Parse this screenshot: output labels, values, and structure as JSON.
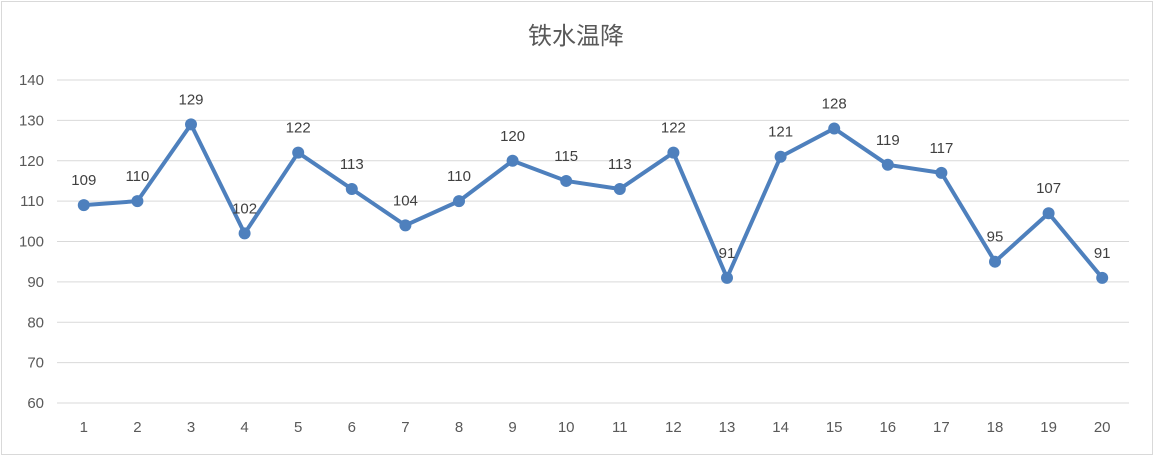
{
  "chart_data": {
    "type": "line",
    "title": "铁水温降",
    "xlabel": "",
    "ylabel": "",
    "categories": [
      "1",
      "2",
      "3",
      "4",
      "5",
      "6",
      "7",
      "8",
      "9",
      "10",
      "11",
      "12",
      "13",
      "14",
      "15",
      "16",
      "17",
      "18",
      "19",
      "20"
    ],
    "series": [
      {
        "values": [
          109,
          110,
          129,
          102,
          122,
          113,
          104,
          110,
          120,
          115,
          113,
          122,
          91,
          121,
          128,
          119,
          117,
          95,
          107,
          91
        ]
      }
    ],
    "ylim": [
      60,
      140
    ],
    "yticks": [
      60,
      70,
      80,
      90,
      100,
      110,
      120,
      130,
      140
    ],
    "grid": true,
    "legend": "none",
    "data_labels": true,
    "color": "#4e80bd"
  }
}
